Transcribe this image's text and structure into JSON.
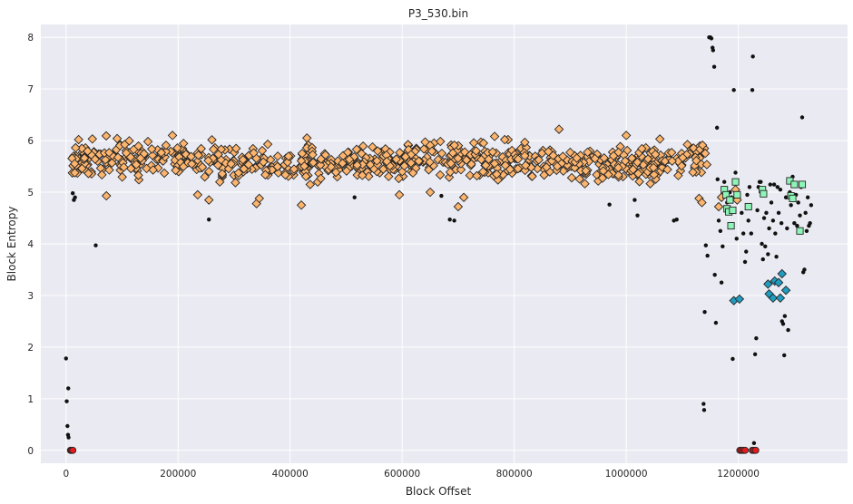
{
  "chart_data": {
    "type": "scatter",
    "title": "P3_530.bin",
    "xlabel": "Block Offset",
    "ylabel": "Block Entropy",
    "xlim": [
      -45000,
      1395000
    ],
    "ylim": [
      -0.25,
      8.25
    ],
    "xticks": [
      0,
      200000,
      400000,
      600000,
      800000,
      1000000,
      1200000
    ],
    "xtick_labels": [
      "0",
      "200000",
      "400000",
      "600000",
      "800000",
      "1000000",
      "1200000"
    ],
    "yticks": [
      0,
      1,
      2,
      3,
      4,
      5,
      6,
      7,
      8
    ],
    "ytick_labels": [
      "0",
      "1",
      "2",
      "3",
      "4",
      "5",
      "6",
      "7",
      "8"
    ],
    "grid": true,
    "background": "#eaeaf2",
    "series": [
      {
        "marker": "dot",
        "color": "#111111",
        "points": [
          [
            0,
            1.78
          ],
          [
            1200,
            0.95
          ],
          [
            2500,
            0.47
          ],
          [
            3500,
            0.3
          ],
          [
            4500,
            0.25
          ],
          [
            4000,
            1.2
          ],
          [
            5500,
            0.0
          ],
          [
            12000,
            4.98
          ],
          [
            14000,
            4.85
          ],
          [
            16000,
            4.9
          ],
          [
            53000,
            3.97
          ],
          [
            65000,
            5.4
          ],
          [
            255000,
            4.47
          ],
          [
            515000,
            4.9
          ],
          [
            670000,
            4.93
          ],
          [
            685000,
            4.47
          ],
          [
            693000,
            4.45
          ],
          [
            970000,
            4.76
          ],
          [
            1010000,
            5.4
          ],
          [
            1015000,
            4.85
          ],
          [
            1020000,
            4.55
          ],
          [
            1085000,
            4.45
          ],
          [
            1090000,
            4.47
          ],
          [
            1138000,
            0.9
          ],
          [
            1139000,
            0.78
          ],
          [
            1140000,
            2.68
          ],
          [
            1142000,
            3.97
          ],
          [
            1145000,
            3.77
          ],
          [
            1148000,
            8.0
          ],
          [
            1150000,
            8.0
          ],
          [
            1152000,
            7.98
          ],
          [
            1154000,
            7.8
          ],
          [
            1155000,
            7.75
          ],
          [
            1157000,
            7.43
          ],
          [
            1158000,
            3.4
          ],
          [
            1160000,
            2.47
          ],
          [
            1162000,
            6.25
          ],
          [
            1163000,
            5.25
          ],
          [
            1165000,
            4.45
          ],
          [
            1168000,
            4.25
          ],
          [
            1170000,
            3.25
          ],
          [
            1172000,
            3.95
          ],
          [
            1175000,
            5.2
          ],
          [
            1180000,
            4.8
          ],
          [
            1185000,
            5.0
          ],
          [
            1188000,
            4.9
          ],
          [
            1190000,
            1.77
          ],
          [
            1192000,
            6.98
          ],
          [
            1195000,
            5.38
          ],
          [
            1197000,
            4.1
          ],
          [
            1200000,
            0.0
          ],
          [
            1203000,
            0.0
          ],
          [
            1206000,
            4.6
          ],
          [
            1209000,
            4.2
          ],
          [
            1212000,
            3.65
          ],
          [
            1214000,
            3.85
          ],
          [
            1216000,
            4.95
          ],
          [
            1218000,
            4.45
          ],
          [
            1220000,
            5.1
          ],
          [
            1223000,
            4.2
          ],
          [
            1225000,
            6.98
          ],
          [
            1226000,
            7.63
          ],
          [
            1228000,
            0.14
          ],
          [
            1230000,
            1.86
          ],
          [
            1232000,
            2.17
          ],
          [
            1234000,
            4.65
          ],
          [
            1236000,
            5.1
          ],
          [
            1238000,
            5.2
          ],
          [
            1240000,
            5.2
          ],
          [
            1242000,
            4.0
          ],
          [
            1244000,
            3.7
          ],
          [
            1246000,
            4.5
          ],
          [
            1248000,
            3.95
          ],
          [
            1250000,
            4.6
          ],
          [
            1253000,
            3.8
          ],
          [
            1255000,
            4.3
          ],
          [
            1257000,
            5.15
          ],
          [
            1259000,
            4.8
          ],
          [
            1262000,
            4.45
          ],
          [
            1264000,
            5.15
          ],
          [
            1266000,
            4.2
          ],
          [
            1268000,
            3.75
          ],
          [
            1270000,
            5.1
          ],
          [
            1272000,
            4.6
          ],
          [
            1275000,
            5.05
          ],
          [
            1277000,
            4.4
          ],
          [
            1278000,
            2.5
          ],
          [
            1280000,
            2.45
          ],
          [
            1282000,
            1.84
          ],
          [
            1283000,
            2.6
          ],
          [
            1285000,
            4.9
          ],
          [
            1287000,
            4.3
          ],
          [
            1289000,
            2.33
          ],
          [
            1292000,
            5.0
          ],
          [
            1294000,
            4.75
          ],
          [
            1297000,
            5.3
          ],
          [
            1300000,
            4.4
          ],
          [
            1303000,
            4.95
          ],
          [
            1305000,
            4.35
          ],
          [
            1307000,
            4.8
          ],
          [
            1310000,
            4.55
          ],
          [
            1312000,
            5.1
          ],
          [
            1314000,
            6.45
          ],
          [
            1316000,
            3.45
          ],
          [
            1318000,
            3.5
          ],
          [
            1320000,
            4.6
          ],
          [
            1322000,
            4.25
          ],
          [
            1324000,
            4.9
          ],
          [
            1326000,
            4.35
          ],
          [
            1328000,
            4.4
          ],
          [
            1330000,
            4.75
          ]
        ]
      },
      {
        "marker": "diamond",
        "color": "#fdb56e",
        "edge": "#262626",
        "band": {
          "x_from": 8000,
          "x_to": 1145000,
          "count": 760,
          "mean": 5.6,
          "spread": 0.3,
          "seed": 530
        },
        "points": [
          [
            72000,
            4.93
          ],
          [
            190000,
            6.1
          ],
          [
            235000,
            4.95
          ],
          [
            255000,
            4.85
          ],
          [
            340000,
            4.78
          ],
          [
            345000,
            4.88
          ],
          [
            420000,
            4.75
          ],
          [
            430000,
            6.05
          ],
          [
            595000,
            4.95
          ],
          [
            650000,
            5.0
          ],
          [
            700000,
            4.72
          ],
          [
            710000,
            4.9
          ],
          [
            765000,
            6.08
          ],
          [
            880000,
            6.22
          ],
          [
            1000000,
            6.1
          ],
          [
            1060000,
            6.03
          ],
          [
            1130000,
            4.88
          ],
          [
            1135000,
            4.8
          ],
          [
            1165000,
            4.72
          ],
          [
            1170000,
            4.9
          ],
          [
            1195000,
            5.05
          ],
          [
            1198000,
            4.85
          ]
        ]
      },
      {
        "marker": "diamond",
        "color": "#1f9cc0",
        "edge": "#262626",
        "points": [
          [
            1192000,
            2.9
          ],
          [
            1202000,
            2.93
          ],
          [
            1253000,
            3.22
          ],
          [
            1255000,
            3.03
          ],
          [
            1262000,
            2.95
          ],
          [
            1265000,
            3.28
          ],
          [
            1272000,
            3.25
          ],
          [
            1275000,
            2.95
          ],
          [
            1278000,
            3.42
          ],
          [
            1285000,
            3.1
          ]
        ]
      },
      {
        "marker": "square",
        "color": "#8ef5b8",
        "edge": "#262626",
        "points": [
          [
            1175000,
            5.05
          ],
          [
            1178000,
            4.95
          ],
          [
            1180000,
            4.68
          ],
          [
            1183000,
            4.62
          ],
          [
            1185000,
            4.85
          ],
          [
            1187000,
            4.35
          ],
          [
            1190000,
            4.65
          ],
          [
            1195000,
            5.2
          ],
          [
            1198000,
            4.95
          ],
          [
            1218000,
            4.72
          ],
          [
            1243000,
            5.05
          ],
          [
            1245000,
            4.97
          ],
          [
            1292000,
            5.22
          ],
          [
            1294000,
            4.93
          ],
          [
            1297000,
            4.88
          ],
          [
            1300000,
            5.15
          ],
          [
            1310000,
            4.25
          ],
          [
            1314000,
            5.15
          ]
        ]
      },
      {
        "marker": "circle",
        "color": "#e41a1c",
        "edge": "#262626",
        "points": [
          [
            8000,
            0.0
          ],
          [
            10000,
            0.0
          ],
          [
            12000,
            0.0
          ],
          [
            1203000,
            0.0
          ],
          [
            1206000,
            0.0
          ],
          [
            1209000,
            0.0
          ],
          [
            1212000,
            0.0
          ],
          [
            1225000,
            0.0
          ],
          [
            1228000,
            0.0
          ],
          [
            1231000,
            0.0
          ]
        ]
      }
    ]
  }
}
